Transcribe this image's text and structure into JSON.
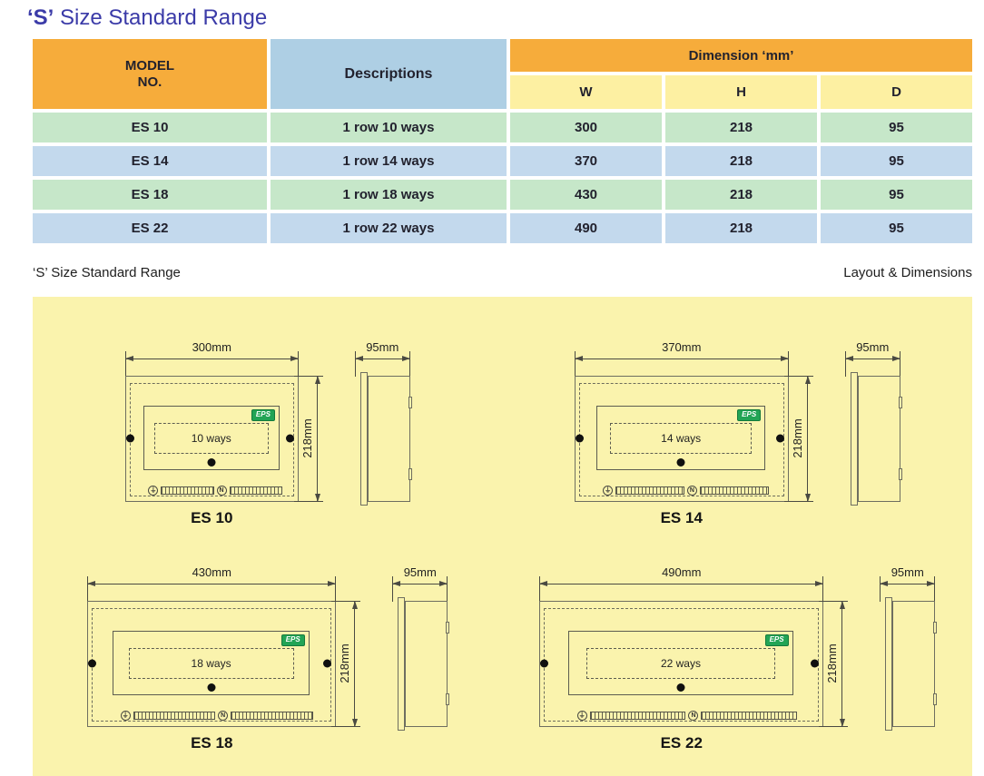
{
  "colors": {
    "title_blue": "#3B3BA8",
    "header_orange": "#F6AC3B",
    "header_blue": "#AECFE4",
    "subheader_yellow": "#FDF0A2",
    "row_green": "#C6E7C9",
    "row_blue": "#C3D9ED",
    "panel_yellow": "#FAF3AD",
    "eps_green": "#22A455"
  },
  "title": {
    "emphasis": "‘S’",
    "rest": " Size Standard Range"
  },
  "table": {
    "header": {
      "model_line1": "MODEL",
      "model_line2": "NO.",
      "descriptions": "Descriptions",
      "dimension": "Dimension ‘mm’",
      "w": "W",
      "h": "H",
      "d": "D"
    },
    "rows": [
      {
        "model": "ES 10",
        "description": "1 row 10 ways",
        "w": "300",
        "h": "218",
        "d": "95"
      },
      {
        "model": "ES 14",
        "description": "1 row 14 ways",
        "w": "370",
        "h": "218",
        "d": "95"
      },
      {
        "model": "ES 18",
        "description": "1 row 18 ways",
        "w": "430",
        "h": "218",
        "d": "95"
      },
      {
        "model": "ES 22",
        "description": "1 row 22 ways",
        "w": "490",
        "h": "218",
        "d": "95"
      }
    ]
  },
  "section": {
    "left_label": "‘S’ Size Standard Range",
    "right_label": "Layout & Dimensions"
  },
  "diagrams": [
    {
      "model": "ES 10",
      "ways": "10 ways",
      "width_label": "300mm",
      "height_label": "218mm",
      "depth_label": "95mm",
      "width_mm": 300,
      "height_mm": 218,
      "depth_mm": 95,
      "logo": "EPS",
      "earth": "⏚",
      "neutral": "N"
    },
    {
      "model": "ES 14",
      "ways": "14 ways",
      "width_label": "370mm",
      "height_label": "218mm",
      "depth_label": "95mm",
      "width_mm": 370,
      "height_mm": 218,
      "depth_mm": 95,
      "logo": "EPS",
      "earth": "⏚",
      "neutral": "N"
    },
    {
      "model": "ES 18",
      "ways": "18 ways",
      "width_label": "430mm",
      "height_label": "218mm",
      "depth_label": "95mm",
      "width_mm": 430,
      "height_mm": 218,
      "depth_mm": 95,
      "logo": "EPS",
      "earth": "⏚",
      "neutral": "N"
    },
    {
      "model": "ES 22",
      "ways": "22 ways",
      "width_label": "490mm",
      "height_label": "218mm",
      "depth_label": "95mm",
      "width_mm": 490,
      "height_mm": 218,
      "depth_mm": 95,
      "logo": "EPS",
      "earth": "⏚",
      "neutral": "N"
    }
  ]
}
